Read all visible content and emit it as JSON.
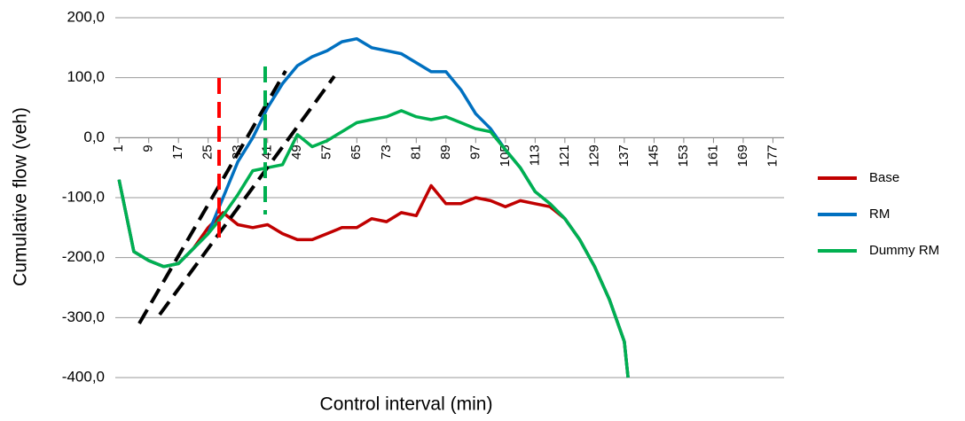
{
  "chart_data": {
    "type": "line",
    "x_label": "Control interval (min)",
    "y_label": "Cumulative flow (veh)",
    "x": [
      1,
      5,
      9,
      13,
      17,
      21,
      25,
      29,
      33,
      37,
      41,
      45,
      49,
      53,
      57,
      61,
      65,
      69,
      73,
      77,
      81,
      85,
      89,
      93,
      97,
      101,
      105,
      109,
      113,
      117,
      121,
      125,
      129,
      133,
      137,
      138
    ],
    "series": [
      {
        "name": "Base",
        "color": "#c00000",
        "values": [
          -70,
          -190,
          -205,
          -215,
          -210,
          -185,
          -150,
          -125,
          -145,
          -150,
          -145,
          -160,
          -170,
          -170,
          -160,
          -150,
          -150,
          -135,
          -140,
          -125,
          -130,
          -80,
          -110,
          -110,
          -100,
          -105,
          -115,
          -105,
          -110,
          -115,
          -135,
          -170,
          -215,
          -270,
          -340,
          -400
        ]
      },
      {
        "name": "RM",
        "color": "#0070c0",
        "values": [
          -70,
          -190,
          -205,
          -215,
          -210,
          -185,
          -160,
          -100,
          -40,
          0,
          50,
          90,
          120,
          135,
          145,
          160,
          165,
          150,
          145,
          140,
          125,
          110,
          110,
          80,
          40,
          15,
          -20,
          -50,
          -90,
          -110,
          -135,
          -170,
          -215,
          -270,
          -340,
          -400
        ]
      },
      {
        "name": "Dummy RM",
        "color": "#00b050",
        "values": [
          -70,
          -190,
          -205,
          -215,
          -210,
          -185,
          -160,
          -130,
          -95,
          -55,
          -50,
          -45,
          5,
          -15,
          -5,
          10,
          25,
          30,
          35,
          45,
          35,
          30,
          35,
          25,
          15,
          10,
          -20,
          -50,
          -90,
          -110,
          -135,
          -170,
          -215,
          -270,
          -340,
          -400
        ]
      }
    ],
    "xlim": [
      0,
      180
    ],
    "xticks": [
      1,
      9,
      17,
      25,
      33,
      41,
      49,
      57,
      65,
      73,
      81,
      89,
      97,
      105,
      113,
      121,
      129,
      137,
      145,
      153,
      161,
      169,
      177
    ],
    "ylim": [
      -400,
      200
    ],
    "yticks": [
      {
        "value": -400,
        "label": "-400,0"
      },
      {
        "value": -300,
        "label": "-300,0"
      },
      {
        "value": -200,
        "label": "-200,0"
      },
      {
        "value": -100,
        "label": "-100,0"
      },
      {
        "value": 0,
        "label": "0,0"
      },
      {
        "value": 100,
        "label": "100,0"
      },
      {
        "value": 200,
        "label": "200,0"
      }
    ],
    "grid": true,
    "legend": "right"
  }
}
